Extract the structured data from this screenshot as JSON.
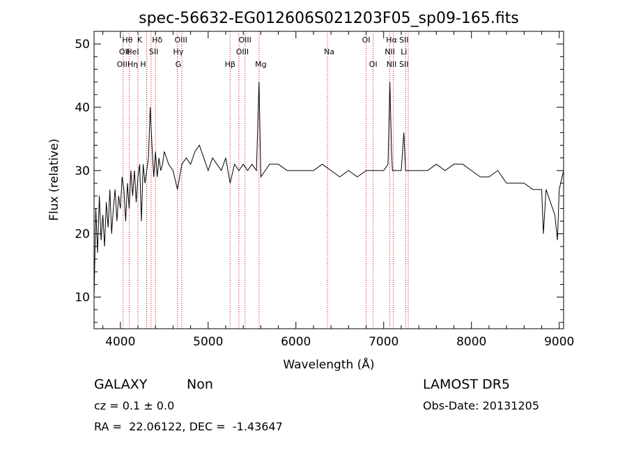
{
  "chart_data": {
    "type": "line",
    "title": "spec-56632-EG012606S021203F05_sp09-165.fits",
    "xlabel": "Wavelength (Å)",
    "ylabel": "Flux (relative)",
    "xlim": [
      3700,
      9050
    ],
    "ylim": [
      5,
      52
    ],
    "xticks": [
      4000,
      5000,
      6000,
      7000,
      8000,
      9000
    ],
    "yticks": [
      10,
      20,
      30,
      40,
      50
    ],
    "grid": false,
    "line_color": "#000000",
    "marker_color": "#cc0000",
    "series": [
      {
        "x": [
          3700,
          3720,
          3740,
          3760,
          3780,
          3800,
          3820,
          3840,
          3860,
          3880,
          3900,
          3920,
          3940,
          3960,
          3980,
          4000,
          4020,
          4040,
          4060,
          4080,
          4100,
          4120,
          4140,
          4160,
          4180,
          4200,
          4220,
          4240,
          4260,
          4280,
          4300,
          4320,
          4340,
          4360,
          4380,
          4400,
          4420,
          4440,
          4460,
          4480,
          4500,
          4550,
          4600,
          4650,
          4700,
          4750,
          4800,
          4850,
          4900,
          4950,
          5000,
          5050,
          5100,
          5150,
          5200,
          5250,
          5300,
          5350,
          5400,
          5450,
          5500,
          5550,
          5580,
          5600,
          5650,
          5700,
          5800,
          5900,
          6000,
          6100,
          6200,
          6300,
          6400,
          6500,
          6600,
          6700,
          6800,
          6900,
          7000,
          7050,
          7070,
          7090,
          7100,
          7150,
          7200,
          7230,
          7250,
          7300,
          7400,
          7500,
          7600,
          7700,
          7800,
          7900,
          8000,
          8100,
          8200,
          8300,
          8400,
          8500,
          8600,
          8700,
          8800,
          8820,
          8850,
          8900,
          8950,
          8980,
          9000,
          9050
        ],
        "y": [
          10,
          24,
          17,
          26,
          19,
          23,
          18,
          25,
          21,
          27,
          20,
          24,
          27,
          22,
          26,
          24,
          29,
          27,
          22,
          28,
          24,
          30,
          26,
          30,
          25,
          29,
          31,
          22,
          31,
          28,
          30,
          32,
          40,
          34,
          29,
          33,
          29,
          32,
          30,
          31,
          33,
          31,
          30,
          27,
          31,
          32,
          31,
          33,
          34,
          32,
          30,
          32,
          31,
          30,
          32,
          28,
          31,
          30,
          31,
          30,
          31,
          30,
          44,
          29,
          30,
          31,
          31,
          30,
          30,
          30,
          30,
          31,
          30,
          29,
          30,
          29,
          30,
          30,
          30,
          31,
          44,
          33,
          30,
          30,
          30,
          36,
          30,
          30,
          30,
          30,
          31,
          30,
          31,
          31,
          30,
          29,
          29,
          30,
          28,
          28,
          28,
          27,
          27,
          20,
          27,
          25,
          23,
          19,
          27,
          30
        ]
      }
    ],
    "lines": [
      {
        "x": 4030,
        "label": "OII"
      },
      {
        "x": 4102,
        "label": "Hδ"
      },
      {
        "x": 4200,
        "label": "HeI"
      },
      {
        "x": 4300,
        "label": "H"
      },
      {
        "x": 4350,
        "label": "Hγ"
      },
      {
        "x": 4400,
        "label": "SII"
      },
      {
        "x": 4650,
        "label": "G"
      },
      {
        "x": 4700,
        "label": "OIII"
      },
      {
        "x": 5250,
        "label": "Hβ"
      },
      {
        "x": 5350,
        "label": "OIII"
      },
      {
        "x": 5420,
        "label": "OIII"
      },
      {
        "x": 5580,
        "label": "Mg"
      },
      {
        "x": 6360,
        "label": "Na"
      },
      {
        "x": 6800,
        "label": "OI"
      },
      {
        "x": 6880,
        "label": "OI"
      },
      {
        "x": 7070,
        "label": "Hα"
      },
      {
        "x": 7110,
        "label": "NII"
      },
      {
        "x": 7250,
        "label": "SII"
      },
      {
        "x": 7280,
        "label": "Li"
      }
    ],
    "line_labels": [
      {
        "x": 4045,
        "row": 1,
        "text": "OII"
      },
      {
        "x": 4080,
        "row": 0,
        "text": "Hθ"
      },
      {
        "x": 4140,
        "row": 1,
        "text": "HeI"
      },
      {
        "x": 4220,
        "row": 0,
        "text": "K"
      },
      {
        "x": 4080,
        "row": 2,
        "text": "OIIHη"
      },
      {
        "x": 4260,
        "row": 2,
        "text": "H"
      },
      {
        "x": 4420,
        "row": 0,
        "text": "Hδ"
      },
      {
        "x": 4380,
        "row": 1,
        "text": "SII"
      },
      {
        "x": 4690,
        "row": 0,
        "text": "OIII"
      },
      {
        "x": 4660,
        "row": 1,
        "text": "Hγ"
      },
      {
        "x": 4660,
        "row": 2,
        "text": "G"
      },
      {
        "x": 5250,
        "row": 2,
        "text": "Hβ"
      },
      {
        "x": 5420,
        "row": 0,
        "text": "OIII"
      },
      {
        "x": 5390,
        "row": 1,
        "text": "OIII"
      },
      {
        "x": 5600,
        "row": 2,
        "text": "Mg"
      },
      {
        "x": 6380,
        "row": 1,
        "text": "Na"
      },
      {
        "x": 6800,
        "row": 0,
        "text": "OI"
      },
      {
        "x": 6880,
        "row": 2,
        "text": "OI"
      },
      {
        "x": 7090,
        "row": 0,
        "text": "Hα"
      },
      {
        "x": 7230,
        "row": 0,
        "text": "SII"
      },
      {
        "x": 7070,
        "row": 1,
        "text": "NII"
      },
      {
        "x": 7230,
        "row": 1,
        "text": "Li"
      },
      {
        "x": 7090,
        "row": 2,
        "text": "NII"
      },
      {
        "x": 7230,
        "row": 2,
        "text": "SII"
      }
    ]
  },
  "info": {
    "class": "GALAXY",
    "subclass": "Non",
    "survey": "LAMOST DR5",
    "cz": "cz = 0.1 ± 0.0",
    "obsdate": "Obs-Date: 20131205",
    "radec": "RA =  22.06122, DEC =  -1.43647"
  }
}
